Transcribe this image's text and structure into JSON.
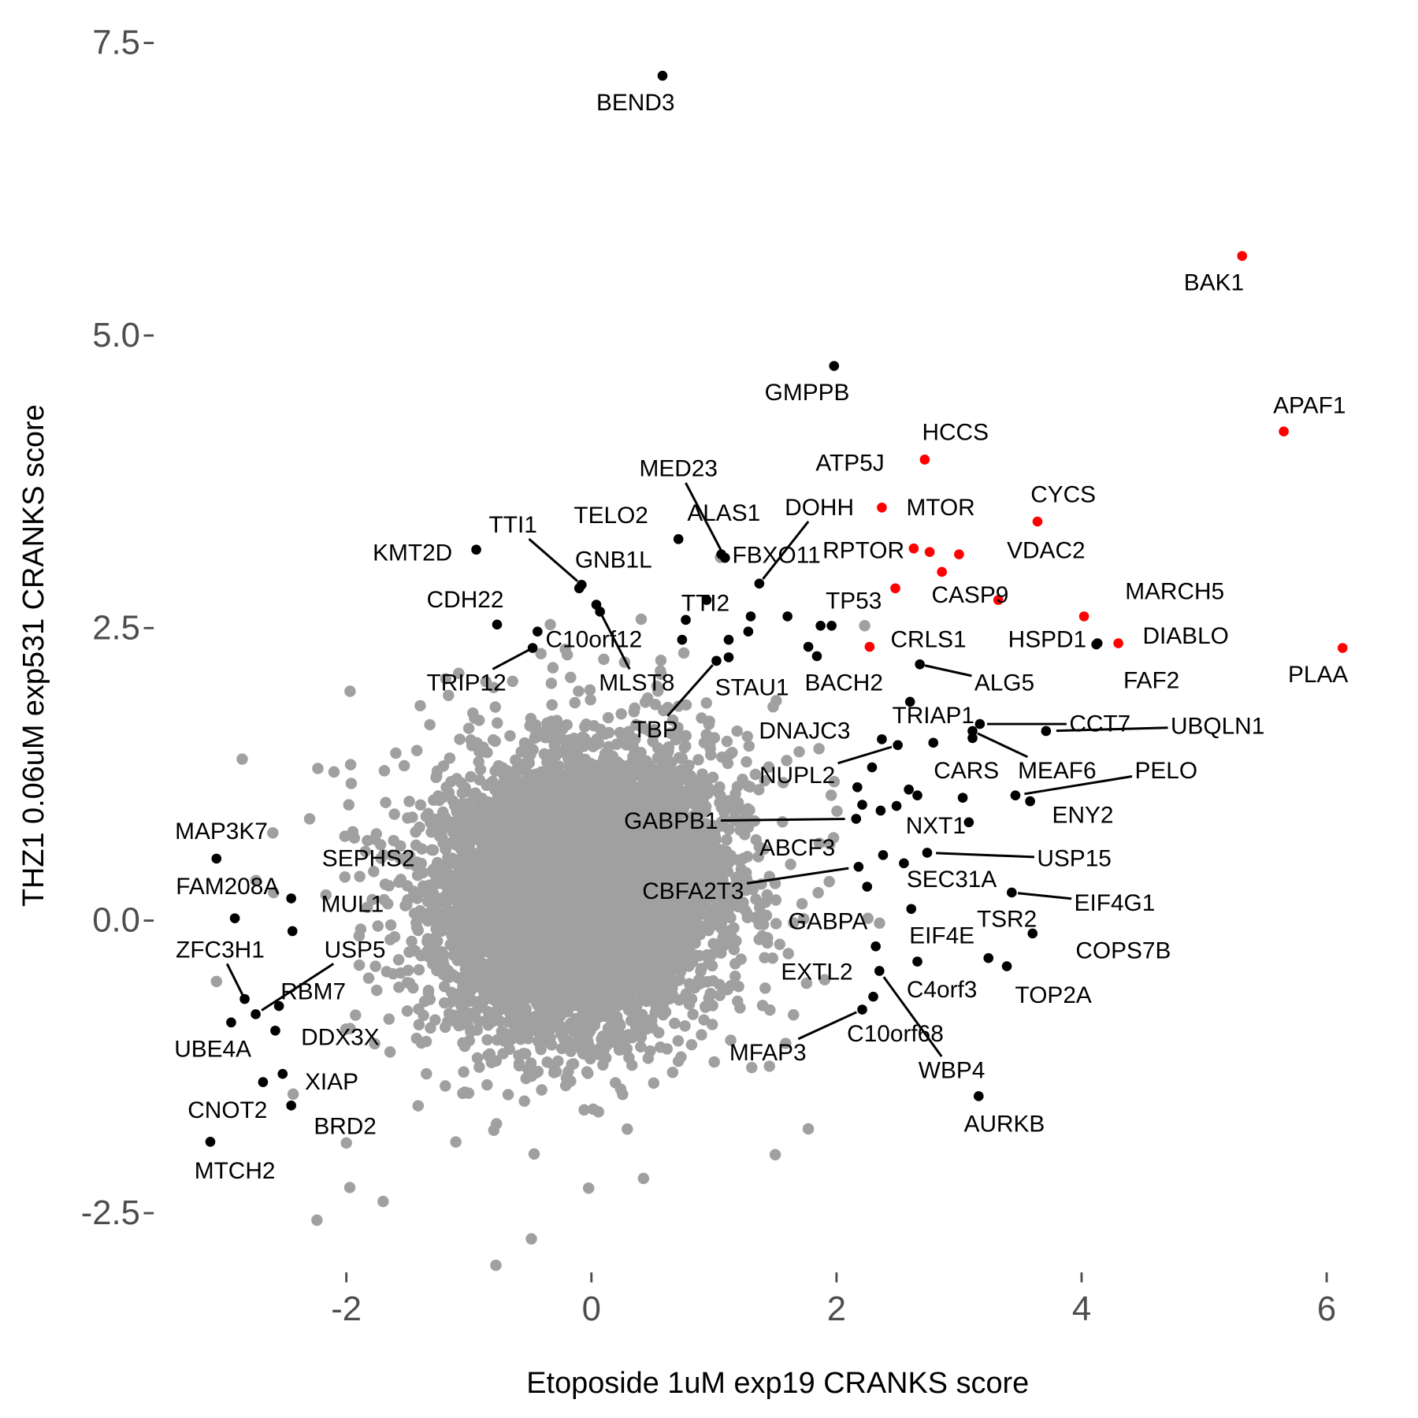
{
  "chart_data": {
    "type": "scatter",
    "xlabel": "Etoposide 1uM exp19 CRANKS score",
    "ylabel": "THZ1 0.06uM exp531 CRANKS score",
    "xlim": [
      -3.57,
      6.32
    ],
    "ylim": [
      -2.95,
      7.71
    ],
    "x_ticks": [
      {
        "value": -2,
        "label": "-2"
      },
      {
        "value": 0,
        "label": "0"
      },
      {
        "value": 2,
        "label": "2"
      },
      {
        "value": 4,
        "label": "4"
      },
      {
        "value": 6,
        "label": "6"
      }
    ],
    "y_ticks": [
      {
        "value": -2.5,
        "label": "-2.5"
      },
      {
        "value": 0,
        "label": "0.0"
      },
      {
        "value": 2.5,
        "label": "2.5"
      },
      {
        "value": 5,
        "label": "5.0"
      },
      {
        "value": 7.5,
        "label": "7.5"
      }
    ],
    "grid": false,
    "legend": "none",
    "colors": {
      "background_points": "#a0a0a0",
      "highlighted": "#000000",
      "red_set": "#ff0000",
      "ticks": "#4d4d4d"
    },
    "background_points_note_visible": false,
    "background_outliers": [
      [
        -1.97,
        1.96
      ],
      [
        -2.85,
        1.38
      ],
      [
        -2.3,
        0.87
      ],
      [
        -3.06,
        -0.52
      ],
      [
        -2.24,
        -2.56
      ],
      [
        -0.49,
        -2.72
      ],
      [
        2.23,
        2.52
      ],
      [
        1.77,
        -1.78
      ],
      [
        -2.6,
        0.75
      ],
      [
        -2.0,
        -1.9
      ],
      [
        1.5,
        -2.0
      ],
      [
        -1.7,
        -2.4
      ]
    ],
    "red_points": [
      {
        "gene": "BAK1",
        "x": 5.31,
        "y": 5.68,
        "lx": 5.08,
        "ly": 5.45
      },
      {
        "gene": "APAF1",
        "x": 5.65,
        "y": 4.18,
        "lx": 5.86,
        "ly": 4.4
      },
      {
        "gene": "PLAA",
        "x": 6.13,
        "y": 2.33,
        "lx": 5.93,
        "ly": 2.1
      },
      {
        "gene": "HCCS",
        "x": 2.72,
        "y": 3.94,
        "lx": 2.97,
        "ly": 4.17
      },
      {
        "gene": "ATP5J",
        "x": 2.76,
        "y": 3.15,
        "lx": 2.11,
        "ly": 3.91
      },
      {
        "gene": "MTOR",
        "x": 2.37,
        "y": 3.53,
        "lx": 2.85,
        "ly": 3.53
      },
      {
        "gene": "CYCS",
        "x": 3.64,
        "y": 3.41,
        "lx": 3.85,
        "ly": 3.64
      },
      {
        "gene": "RPTOR",
        "x": 2.63,
        "y": 3.18,
        "lx": 2.22,
        "ly": 3.16
      },
      {
        "gene": "VDAC2",
        "x": 3.0,
        "y": 3.13,
        "lx": 3.71,
        "ly": 3.16
      },
      {
        "gene": "CASP9",
        "x": 3.32,
        "y": 2.74,
        "lx": 3.09,
        "ly": 2.78
      },
      {
        "gene": "",
        "x": 2.86,
        "y": 2.98
      },
      {
        "gene": "TP53",
        "x": 2.48,
        "y": 2.84,
        "lx": 2.14,
        "ly": 2.73
      },
      {
        "gene": "CRLS1",
        "x": 2.27,
        "y": 2.34,
        "lx": 2.75,
        "ly": 2.4
      },
      {
        "gene": "MARCH5",
        "x": 4.02,
        "y": 2.6,
        "lx": 4.76,
        "ly": 2.81
      },
      {
        "gene": "DIABLO",
        "x": 4.3,
        "y": 2.37,
        "lx": 4.85,
        "ly": 2.43
      }
    ],
    "black_points": [
      {
        "gene": "BEND3",
        "x": 0.58,
        "y": 7.22,
        "lx": 0.36,
        "ly": 6.99
      },
      {
        "gene": "GMPPB",
        "x": 1.98,
        "y": 4.74,
        "lx": 1.76,
        "ly": 4.51
      },
      {
        "gene": "HSPD1",
        "x": 4.13,
        "y": 2.37,
        "lx": 3.72,
        "ly": 2.4
      },
      {
        "gene": "FAF2",
        "x": 4.12,
        "y": 2.36,
        "lx": 4.57,
        "ly": 2.05
      },
      {
        "gene": "KMT2D",
        "x": -0.94,
        "y": 3.17,
        "lx": -1.46,
        "ly": 3.14
      },
      {
        "gene": "MED23",
        "x": 1.09,
        "y": 3.1,
        "lx": 0.71,
        "ly": 3.86,
        "line": true
      },
      {
        "gene": "ALAS1",
        "x": 0.71,
        "y": 3.26,
        "lx": 1.08,
        "ly": 3.48
      },
      {
        "gene": "DOHH",
        "x": 1.37,
        "y": 2.88,
        "lx": 1.86,
        "ly": 3.53,
        "line": true
      },
      {
        "gene": "TTI1",
        "x": -0.08,
        "y": 2.87,
        "lx": -0.64,
        "ly": 3.38,
        "line": true
      },
      {
        "gene": "TELO2",
        "x": -0.1,
        "y": 2.84,
        "lx": 0.16,
        "ly": 3.46
      },
      {
        "gene": "GNB1L",
        "x": 0.04,
        "y": 2.7,
        "lx": 0.18,
        "ly": 3.08
      },
      {
        "gene": "FBXO11",
        "x": 1.06,
        "y": 3.13,
        "lx": 1.51,
        "ly": 3.12
      },
      {
        "gene": "TTI2",
        "x": 0.94,
        "y": 2.74,
        "lx": 0.93,
        "ly": 2.71
      },
      {
        "gene": "CDH22",
        "x": -0.77,
        "y": 2.53,
        "lx": -1.03,
        "ly": 2.74
      },
      {
        "gene": "C10orf12",
        "x": -0.44,
        "y": 2.47,
        "lx": 0.02,
        "ly": 2.4
      },
      {
        "gene": "TRIP12",
        "x": -0.48,
        "y": 2.33,
        "lx": -1.02,
        "ly": 2.03,
        "line": true
      },
      {
        "gene": "MLST8",
        "x": 0.07,
        "y": 2.64,
        "lx": 0.37,
        "ly": 2.03,
        "line": true
      },
      {
        "gene": "STAU1",
        "x": 1.12,
        "y": 2.25,
        "lx": 1.31,
        "ly": 1.99
      },
      {
        "gene": "BACH2",
        "x": 1.84,
        "y": 2.26,
        "lx": 2.06,
        "ly": 2.03
      },
      {
        "gene": "TBP",
        "x": 1.02,
        "y": 2.22,
        "lx": 0.52,
        "ly": 1.63,
        "line": true
      },
      {
        "gene": "ALG5",
        "x": 2.68,
        "y": 2.19,
        "lx": 3.37,
        "ly": 2.03,
        "line": true
      },
      {
        "gene": "TRIAP1",
        "x": 2.6,
        "y": 1.87,
        "lx": 2.79,
        "ly": 1.75
      },
      {
        "gene": "CCT7",
        "x": 3.17,
        "y": 1.68,
        "lx": 4.15,
        "ly": 1.68,
        "line": true
      },
      {
        "gene": "UBQLN1",
        "x": 3.71,
        "y": 1.62,
        "lx": 5.11,
        "ly": 1.66,
        "line": true
      },
      {
        "gene": "DNAJC3",
        "x": 2.37,
        "y": 1.55,
        "lx": 1.74,
        "ly": 1.62
      },
      {
        "gene": "NUPL2",
        "x": 2.5,
        "y": 1.5,
        "lx": 1.68,
        "ly": 1.24,
        "line": true
      },
      {
        "gene": "CARS",
        "x": 2.79,
        "y": 1.52,
        "lx": 3.06,
        "ly": 1.28
      },
      {
        "gene": "MEAF6",
        "x": 3.11,
        "y": 1.62,
        "lx": 3.8,
        "ly": 1.28,
        "line": true
      },
      {
        "gene": "PELO",
        "x": 3.46,
        "y": 1.07,
        "lx": 4.69,
        "ly": 1.28,
        "line": true
      },
      {
        "gene": "ENY2",
        "x": 3.58,
        "y": 1.02,
        "lx": 4.01,
        "ly": 0.9
      },
      {
        "gene": "NXT1",
        "x": 3.08,
        "y": 0.84,
        "lx": 2.81,
        "ly": 0.81
      },
      {
        "gene": "GABPB1",
        "x": 2.16,
        "y": 0.87,
        "lx": 0.65,
        "ly": 0.85,
        "line": true
      },
      {
        "gene": "ABCF3",
        "x": 2.38,
        "y": 0.56,
        "lx": 1.68,
        "ly": 0.62
      },
      {
        "gene": "USP15",
        "x": 2.74,
        "y": 0.58,
        "lx": 3.94,
        "ly": 0.53,
        "line": true
      },
      {
        "gene": "CBFA2T3",
        "x": 2.18,
        "y": 0.46,
        "lx": 0.83,
        "ly": 0.25,
        "line": true
      },
      {
        "gene": "SEC31A",
        "x": 2.55,
        "y": 0.49,
        "lx": 2.94,
        "ly": 0.35
      },
      {
        "gene": "EIF4G1",
        "x": 3.43,
        "y": 0.24,
        "lx": 4.27,
        "ly": 0.15,
        "line": true
      },
      {
        "gene": "GABPA",
        "x": 2.25,
        "y": 0.29,
        "lx": 1.93,
        "ly": -0.01
      },
      {
        "gene": "TSR2",
        "x": 2.61,
        "y": 0.1,
        "lx": 3.39,
        "ly": 0.01
      },
      {
        "gene": "COPS7B",
        "x": 3.6,
        "y": -0.11,
        "lx": 4.34,
        "ly": -0.26
      },
      {
        "gene": "EIF4E",
        "x": 2.66,
        "y": -0.35,
        "lx": 2.86,
        "ly": -0.13
      },
      {
        "gene": "EXTL2",
        "x": 2.32,
        "y": -0.22,
        "lx": 1.84,
        "ly": -0.44
      },
      {
        "gene": "C4orf3",
        "x": 3.24,
        "y": -0.32,
        "lx": 2.86,
        "ly": -0.59
      },
      {
        "gene": "TOP2A",
        "x": 3.39,
        "y": -0.39,
        "lx": 3.77,
        "ly": -0.64
      },
      {
        "gene": "WBP4",
        "x": 2.35,
        "y": -0.43,
        "lx": 2.94,
        "ly": -1.28,
        "line": true
      },
      {
        "gene": "C10orf68",
        "x": 2.3,
        "y": -0.65,
        "lx": 2.48,
        "ly": -0.97
      },
      {
        "gene": "MFAP3",
        "x": 2.21,
        "y": -0.76,
        "lx": 1.44,
        "ly": -1.13,
        "line": true
      },
      {
        "gene": "AURKB",
        "x": 3.16,
        "y": -1.5,
        "lx": 3.37,
        "ly": -1.74
      },
      {
        "gene": "MAP3K7",
        "x": -3.06,
        "y": 0.53,
        "lx": -3.02,
        "ly": 0.76
      },
      {
        "gene": "FAM208A",
        "x": -2.91,
        "y": 0.02,
        "lx": -2.97,
        "ly": 0.29
      },
      {
        "gene": "SEPHS2",
        "x": -2.45,
        "y": 0.19,
        "lx": -1.82,
        "ly": 0.53
      },
      {
        "gene": "MUL1",
        "x": -2.44,
        "y": -0.09,
        "lx": -1.95,
        "ly": 0.14
      },
      {
        "gene": "USP5",
        "x": -2.74,
        "y": -0.8,
        "lx": -1.93,
        "ly": -0.25,
        "line": true
      },
      {
        "gene": "ZFC3H1",
        "x": -2.83,
        "y": -0.67,
        "lx": -3.03,
        "ly": -0.25,
        "line": true
      },
      {
        "gene": "RBM7",
        "x": -2.55,
        "y": -0.73,
        "lx": -2.27,
        "ly": -0.61
      },
      {
        "gene": "UBE4A",
        "x": -2.94,
        "y": -0.87,
        "lx": -3.09,
        "ly": -1.1
      },
      {
        "gene": "DDX3X",
        "x": -2.58,
        "y": -0.94,
        "lx": -2.05,
        "ly": -1.0
      },
      {
        "gene": "XIAP",
        "x": -2.52,
        "y": -1.31,
        "lx": -2.12,
        "ly": -1.38
      },
      {
        "gene": "CNOT2",
        "x": -2.68,
        "y": -1.38,
        "lx": -2.97,
        "ly": -1.62
      },
      {
        "gene": "BRD2",
        "x": -2.45,
        "y": -1.58,
        "lx": -2.01,
        "ly": -1.76
      },
      {
        "gene": "MTCH2",
        "x": -3.11,
        "y": -1.89,
        "lx": -2.91,
        "ly": -2.14
      },
      {
        "gene": "",
        "x": 0.77,
        "y": 2.57
      },
      {
        "gene": "",
        "x": 0.74,
        "y": 2.4
      },
      {
        "gene": "",
        "x": 1.12,
        "y": 2.4
      },
      {
        "gene": "",
        "x": 1.3,
        "y": 2.6
      },
      {
        "gene": "",
        "x": 1.28,
        "y": 2.47
      },
      {
        "gene": "",
        "x": 1.6,
        "y": 2.6
      },
      {
        "gene": "",
        "x": 1.77,
        "y": 2.34
      },
      {
        "gene": "",
        "x": 1.96,
        "y": 2.52
      },
      {
        "gene": "",
        "x": 1.87,
        "y": 2.52
      },
      {
        "gene": "",
        "x": 3.11,
        "y": 1.56
      },
      {
        "gene": "",
        "x": 2.29,
        "y": 1.31
      },
      {
        "gene": "",
        "x": 2.17,
        "y": 1.14
      },
      {
        "gene": "",
        "x": 2.59,
        "y": 1.12
      },
      {
        "gene": "",
        "x": 2.66,
        "y": 1.07
      },
      {
        "gene": "",
        "x": 2.21,
        "y": 0.99
      },
      {
        "gene": "",
        "x": 2.36,
        "y": 0.94
      },
      {
        "gene": "",
        "x": 2.49,
        "y": 0.98
      },
      {
        "gene": "",
        "x": 3.03,
        "y": 1.05
      }
    ]
  }
}
